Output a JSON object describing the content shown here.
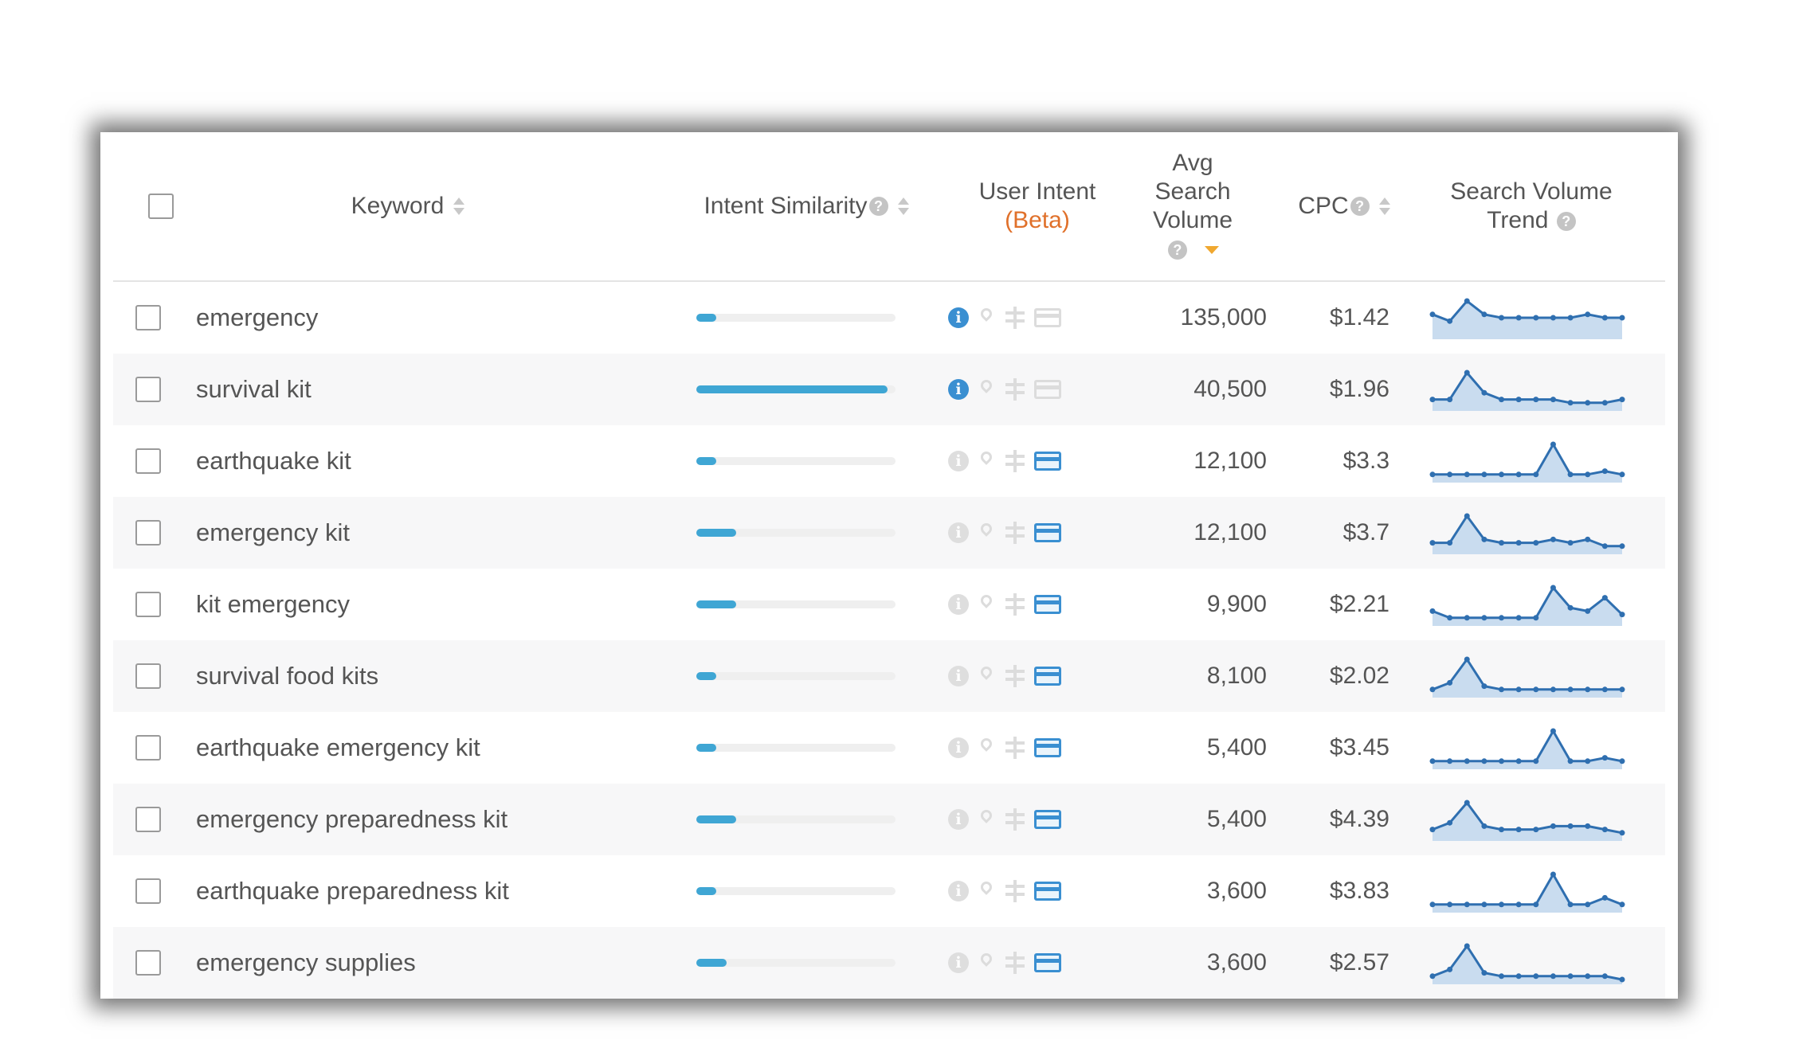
{
  "header": {
    "keyword": "Keyword",
    "intent_similarity": "Intent Similarity",
    "user_intent": "User Intent",
    "user_intent_beta": "(Beta)",
    "avg_volume_1": "Avg",
    "avg_volume_2": "Search",
    "avg_volume_3": "Volume",
    "cpc": "CPC",
    "trend_1": "Search Volume",
    "trend_2": "Trend",
    "help_glyph": "?"
  },
  "colors": {
    "bar": "#3fa6d4",
    "trend_line": "#2f6fb0",
    "trend_fill": "#c9dcef",
    "intent_active": "#3a8fd1",
    "beta": "#e0702a"
  },
  "rows": [
    {
      "keyword": "emergency",
      "similarity": 0.1,
      "info_active": true,
      "card_active": false,
      "volume": "135,000",
      "cpc": "$1.42",
      "trend": [
        6,
        4,
        10,
        6,
        5,
        5,
        5,
        5,
        5,
        6,
        5,
        5
      ]
    },
    {
      "keyword": "survival kit",
      "similarity": 0.96,
      "info_active": true,
      "card_active": false,
      "volume": "40,500",
      "cpc": "$1.96",
      "trend": [
        2,
        2,
        10,
        4,
        2,
        2,
        2,
        2,
        1,
        1,
        1,
        2
      ]
    },
    {
      "keyword": "earthquake kit",
      "similarity": 0.1,
      "info_active": false,
      "card_active": true,
      "volume": "12,100",
      "cpc": "$3.3",
      "trend": [
        1,
        1,
        1,
        1,
        1,
        1,
        1,
        10,
        1,
        1,
        2,
        1
      ]
    },
    {
      "keyword": "emergency kit",
      "similarity": 0.2,
      "info_active": false,
      "card_active": true,
      "volume": "12,100",
      "cpc": "$3.7",
      "trend": [
        2,
        2,
        10,
        3,
        2,
        2,
        2,
        3,
        2,
        3,
        1,
        1
      ]
    },
    {
      "keyword": "kit emergency",
      "similarity": 0.2,
      "info_active": false,
      "card_active": true,
      "volume": "9,900",
      "cpc": "$2.21",
      "trend": [
        3,
        1,
        1,
        1,
        1,
        1,
        1,
        10,
        4,
        3,
        7,
        2
      ]
    },
    {
      "keyword": "survival food kits",
      "similarity": 0.1,
      "info_active": false,
      "card_active": true,
      "volume": "8,100",
      "cpc": "$2.02",
      "trend": [
        1,
        3,
        10,
        2,
        1,
        1,
        1,
        1,
        1,
        1,
        1,
        1
      ]
    },
    {
      "keyword": "earthquake emergency kit",
      "similarity": 0.1,
      "info_active": false,
      "card_active": true,
      "volume": "5,400",
      "cpc": "$3.45",
      "trend": [
        1,
        1,
        1,
        1,
        1,
        1,
        1,
        10,
        1,
        1,
        2,
        1
      ]
    },
    {
      "keyword": "emergency preparedness kit",
      "similarity": 0.2,
      "info_active": false,
      "card_active": true,
      "volume": "5,400",
      "cpc": "$4.39",
      "trend": [
        2,
        4,
        10,
        3,
        2,
        2,
        2,
        3,
        3,
        3,
        2,
        1
      ]
    },
    {
      "keyword": "earthquake preparedness kit",
      "similarity": 0.1,
      "info_active": false,
      "card_active": true,
      "volume": "3,600",
      "cpc": "$3.83",
      "trend": [
        1,
        1,
        1,
        1,
        1,
        1,
        1,
        10,
        1,
        1,
        3,
        1
      ]
    },
    {
      "keyword": "emergency supplies",
      "similarity": 0.15,
      "info_active": false,
      "card_active": true,
      "volume": "3,600",
      "cpc": "$2.57",
      "trend": [
        1,
        3,
        10,
        2,
        1,
        1,
        1,
        1,
        1,
        1,
        1,
        0
      ]
    }
  ]
}
